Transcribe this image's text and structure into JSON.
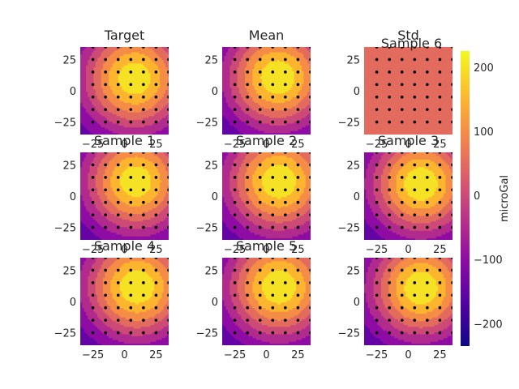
{
  "chart_data": {
    "type": "heatmap",
    "subtype": "filled-contour grid of 9 panels with station dots",
    "colormap": "plasma",
    "grid": false,
    "colorbar": {
      "label": "microGal",
      "range": [
        -235,
        225
      ],
      "ticks": [
        200,
        100,
        0,
        -100,
        -200
      ],
      "tick_labels": [
        "200",
        "100",
        "0",
        "−100",
        "−200"
      ],
      "placement": "right"
    },
    "axes": {
      "xlim": [
        -35,
        35
      ],
      "ylim": [
        -35,
        35
      ],
      "xticks": [
        -25,
        0,
        25
      ],
      "yticks": [
        25,
        0,
        -25
      ],
      "xtick_labels": [
        "−25",
        "0",
        "25"
      ],
      "ytick_labels": [
        "25",
        "0",
        "−25"
      ]
    },
    "contour_levels": [
      -225,
      -175,
      -125,
      -75,
      -25,
      25,
      75,
      125,
      175,
      225
    ],
    "stations": {
      "x": [
        -25,
        -15,
        -5,
        5,
        15,
        25,
        35
      ],
      "y": [
        35,
        25,
        15,
        5,
        -5,
        -15,
        -25
      ]
    },
    "panels": [
      {
        "title": "Target",
        "peak_x": 8,
        "peak_y": 10,
        "amplitude": 410,
        "offset": -200,
        "scale": 30
      },
      {
        "title": "Mean",
        "peak_x": 9,
        "peak_y": 11,
        "amplitude": 430,
        "offset": -215,
        "scale": 30
      },
      {
        "title": "Std",
        "subtitle": "Sample 6",
        "constant": 40
      },
      {
        "title": "Sample 1",
        "peak_x": 9,
        "peak_y": 12,
        "amplitude": 410,
        "offset": -200,
        "scale": 29
      },
      {
        "title": "Sample 2",
        "peak_x": 10,
        "peak_y": 12,
        "amplitude": 420,
        "offset": -205,
        "scale": 30
      },
      {
        "title": "Sample 3",
        "peak_x": 10,
        "peak_y": 10,
        "amplitude": 420,
        "offset": -205,
        "scale": 29
      },
      {
        "title": "Sample 4",
        "peak_x": 10,
        "peak_y": 12,
        "amplitude": 420,
        "offset": -205,
        "scale": 30
      },
      {
        "title": "Sample 5",
        "peak_x": 10,
        "peak_y": 12,
        "amplitude": 425,
        "offset": -210,
        "scale": 30
      },
      {
        "title": "",
        "peak_x": 10,
        "peak_y": 11,
        "amplitude": 420,
        "offset": -205,
        "scale": 29
      }
    ]
  }
}
